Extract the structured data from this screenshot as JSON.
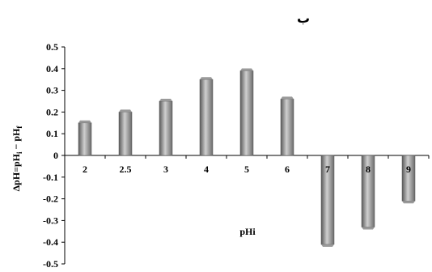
{
  "chart_data": {
    "type": "bar",
    "title": "ب",
    "xlabel": "pHi",
    "ylabel": "ΔpH=pHi − pHf",
    "categories": [
      "2",
      "2.5",
      "3",
      "4",
      "5",
      "6",
      "7",
      "8",
      "9"
    ],
    "values": [
      0.15,
      0.2,
      0.25,
      0.35,
      0.39,
      0.26,
      -0.41,
      -0.33,
      -0.21
    ],
    "ylim": [
      -0.5,
      0.5
    ],
    "yticks": [
      "0.5",
      "0.4",
      "0.3",
      "0.2",
      "0.1",
      "0",
      "-0.1",
      "-0.2",
      "-0.3",
      "-0.4",
      "-0.5"
    ],
    "grid": false,
    "legend": "none",
    "colors": {
      "bar_dark": "#5f5f5f",
      "bar_light": "#bdbdbd",
      "axis": "#000000"
    }
  }
}
